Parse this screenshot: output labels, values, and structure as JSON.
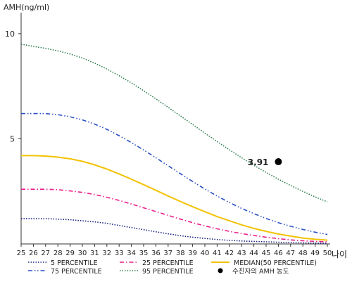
{
  "chart_data": {
    "type": "line",
    "ylabel": "AMH(ng/ml)",
    "xlabel": "나이",
    "ylim": [
      0,
      11
    ],
    "xlim": [
      25,
      50
    ],
    "y_ticks": [
      5,
      10
    ],
    "x_ticks": [
      25,
      26,
      27,
      28,
      29,
      30,
      31,
      32,
      33,
      34,
      35,
      36,
      37,
      38,
      39,
      40,
      41,
      42,
      43,
      44,
      45,
      46,
      47,
      48,
      49,
      50
    ],
    "grid": false,
    "legend_position": "bottom",
    "x": [
      25,
      26,
      27,
      28,
      29,
      30,
      31,
      32,
      33,
      34,
      35,
      36,
      37,
      38,
      39,
      40,
      41,
      42,
      43,
      44,
      45,
      46,
      47,
      48,
      49,
      50
    ],
    "series": [
      {
        "name": "5 PERCENTILE",
        "color": "#1a237e",
        "style": "dotted",
        "values": [
          1.2,
          1.2,
          1.2,
          1.18,
          1.15,
          1.1,
          1.05,
          0.98,
          0.88,
          0.78,
          0.68,
          0.58,
          0.48,
          0.39,
          0.32,
          0.26,
          0.21,
          0.17,
          0.14,
          0.12,
          0.1,
          0.08,
          0.06,
          0.05,
          0.04,
          0.03
        ]
      },
      {
        "name": "25 PERCENTILE",
        "color": "#e91e8c",
        "style": "dashdot",
        "values": [
          2.6,
          2.6,
          2.6,
          2.58,
          2.52,
          2.45,
          2.35,
          2.22,
          2.07,
          1.9,
          1.72,
          1.54,
          1.36,
          1.18,
          1.01,
          0.86,
          0.72,
          0.6,
          0.49,
          0.4,
          0.32,
          0.25,
          0.19,
          0.15,
          0.12,
          0.1
        ]
      },
      {
        "name": "MEDIAN(50 PERCENTILE)",
        "color": "#f2c200",
        "style": "solid",
        "values": [
          4.2,
          4.2,
          4.18,
          4.13,
          4.05,
          3.93,
          3.76,
          3.56,
          3.33,
          3.08,
          2.82,
          2.55,
          2.28,
          2.02,
          1.77,
          1.53,
          1.3,
          1.1,
          0.91,
          0.74,
          0.6,
          0.47,
          0.37,
          0.28,
          0.22,
          0.18
        ]
      },
      {
        "name": "75 PERCENTILE",
        "color": "#2a4fc4",
        "style": "dashdotdot",
        "values": [
          6.2,
          6.2,
          6.2,
          6.15,
          6.05,
          5.9,
          5.7,
          5.45,
          5.15,
          4.82,
          4.47,
          4.1,
          3.72,
          3.34,
          2.97,
          2.61,
          2.28,
          1.97,
          1.69,
          1.44,
          1.21,
          1.01,
          0.84,
          0.69,
          0.56,
          0.45
        ]
      },
      {
        "name": "95 PERCENTILE",
        "color": "#2e7d4f",
        "style": "dotted",
        "values": [
          9.5,
          9.4,
          9.3,
          9.18,
          9.03,
          8.84,
          8.6,
          8.32,
          8.0,
          7.66,
          7.29,
          6.9,
          6.5,
          6.09,
          5.68,
          5.27,
          4.87,
          4.48,
          4.1,
          3.74,
          3.4,
          3.08,
          2.78,
          2.5,
          2.24,
          2.0
        ]
      }
    ],
    "marker": {
      "name": "수진자의 AMH 농도",
      "x": 46,
      "y": 3.91,
      "label": "3.91",
      "color": "#000000"
    }
  }
}
